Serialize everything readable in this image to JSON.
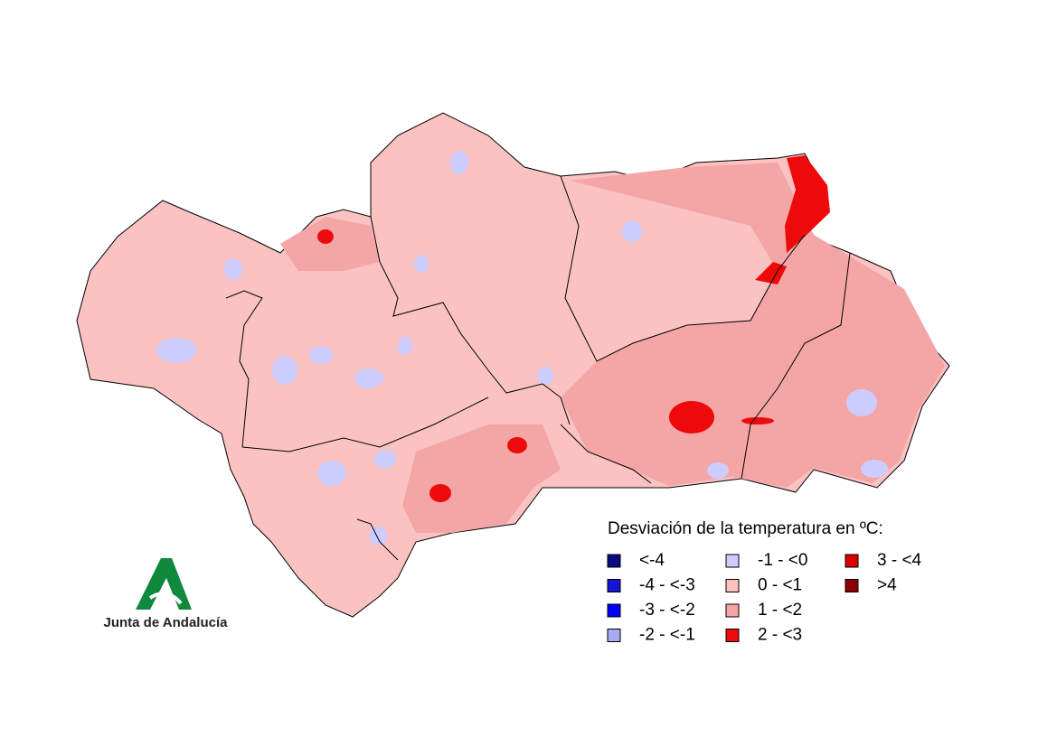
{
  "legend": {
    "title": "Desviación de la temperatura en ºC:",
    "items": [
      {
        "label": "<-4",
        "color": "#0a0a80"
      },
      {
        "label": "-4 - <-3",
        "color": "#1414d2"
      },
      {
        "label": "-3 - <-2",
        "color": "#0000ff"
      },
      {
        "label": "-2 - <-1",
        "color": "#aaaaf2"
      },
      {
        "label": "-1 - <0",
        "color": "#ccccff"
      },
      {
        "label": "0 - <1",
        "color": "#ffc0c0"
      },
      {
        "label": "1 - <2",
        "color": "#f5a3a3"
      },
      {
        "label": "2 - <3",
        "color": "#ee0a0a"
      },
      {
        "label": "3 - <4",
        "color": "#d80000"
      },
      {
        "label": ">4",
        "color": "#8b0000"
      }
    ]
  },
  "logo": {
    "text": "Junta de Andalucía"
  }
}
